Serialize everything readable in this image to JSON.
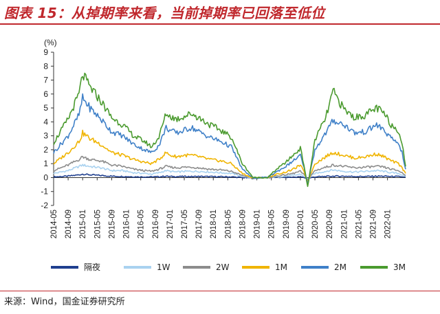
{
  "title": "图表 15：从掉期率来看，当前掉期率已回落至低位",
  "source": "来源：Wind，国金证券研究所",
  "chart_data": {
    "type": "line",
    "unit": "(%)",
    "ylim": [
      -2,
      9
    ],
    "yticks": [
      -2,
      -1,
      0,
      1,
      2,
      3,
      4,
      5,
      6,
      7,
      8,
      9
    ],
    "x_start": "2014-05",
    "x_end": "2022-06",
    "xticks": [
      "2014-05",
      "2014-09",
      "2015-01",
      "2015-05",
      "2015-09",
      "2016-01",
      "2016-05",
      "2016-09",
      "2017-01",
      "2017-05",
      "2017-09",
      "2018-01",
      "2018-05",
      "2018-09",
      "2019-01",
      "2019-05",
      "2019-09",
      "2020-01",
      "2020-05",
      "2020-09",
      "2021-01",
      "2021-05",
      "2021-09",
      "2022-01"
    ],
    "grid": false,
    "legend_position": "bottom",
    "x": [
      "2014-05",
      "2014-09",
      "2014-12",
      "2015-01",
      "2015-03",
      "2015-06",
      "2015-09",
      "2015-12",
      "2016-03",
      "2016-06",
      "2016-08",
      "2016-10",
      "2016-12",
      "2017-01",
      "2017-03",
      "2017-05",
      "2017-07",
      "2017-09",
      "2017-12",
      "2018-03",
      "2018-06",
      "2018-09",
      "2018-12",
      "2019-02",
      "2019-04",
      "2019-06",
      "2019-09",
      "2019-11",
      "2020-01",
      "2020-02",
      "2020-03",
      "2020-05",
      "2020-08",
      "2020-10",
      "2021-01",
      "2021-04",
      "2021-07",
      "2021-10",
      "2021-12",
      "2022-02",
      "2022-04",
      "2022-05",
      "2022-06"
    ],
    "series": [
      {
        "name": "隔夜",
        "color": "#1f3f8f",
        "values": [
          0.05,
          0.1,
          0.2,
          0.25,
          0.2,
          0.15,
          0.1,
          0.08,
          0.06,
          0.05,
          0.05,
          0.06,
          0.1,
          0.08,
          0.07,
          0.08,
          0.07,
          0.08,
          0.07,
          0.06,
          0.05,
          0.0,
          -0.05,
          0.0,
          0.0,
          0.02,
          0.02,
          0.03,
          0.05,
          0.0,
          -0.05,
          0.05,
          0.08,
          0.1,
          0.1,
          0.08,
          0.08,
          0.1,
          0.1,
          0.08,
          0.07,
          0.05,
          0.03
        ]
      },
      {
        "name": "1W",
        "color": "#a9d2f0",
        "values": [
          0.3,
          0.5,
          0.8,
          0.9,
          0.8,
          0.7,
          0.5,
          0.5,
          0.35,
          0.3,
          0.25,
          0.35,
          0.5,
          0.45,
          0.4,
          0.45,
          0.45,
          0.45,
          0.4,
          0.35,
          0.3,
          0.1,
          -0.05,
          0.0,
          0.0,
          0.05,
          0.1,
          0.15,
          0.25,
          0.1,
          -0.1,
          0.3,
          0.45,
          0.55,
          0.45,
          0.4,
          0.45,
          0.5,
          0.45,
          0.35,
          0.3,
          0.2,
          0.1
        ]
      },
      {
        "name": "2W",
        "color": "#8c8c8c",
        "values": [
          0.5,
          0.9,
          1.3,
          1.5,
          1.3,
          1.2,
          0.9,
          0.8,
          0.6,
          0.5,
          0.45,
          0.6,
          0.8,
          0.75,
          0.7,
          0.75,
          0.75,
          0.7,
          0.6,
          0.55,
          0.45,
          0.15,
          -0.05,
          0.0,
          0.0,
          0.1,
          0.2,
          0.3,
          0.45,
          0.2,
          -0.15,
          0.5,
          0.75,
          0.9,
          0.8,
          0.7,
          0.75,
          0.8,
          0.75,
          0.6,
          0.5,
          0.35,
          0.15
        ]
      },
      {
        "name": "1M",
        "color": "#f0b400",
        "values": [
          1.0,
          1.8,
          2.6,
          3.2,
          2.8,
          2.4,
          1.8,
          1.6,
          1.3,
          1.1,
          1.0,
          1.3,
          1.8,
          1.6,
          1.5,
          1.6,
          1.6,
          1.5,
          1.3,
          1.2,
          1.0,
          0.3,
          -0.05,
          0.0,
          0.0,
          0.2,
          0.4,
          0.6,
          0.9,
          0.4,
          -0.3,
          1.0,
          1.5,
          1.8,
          1.6,
          1.4,
          1.5,
          1.7,
          1.5,
          1.2,
          1.0,
          0.7,
          0.3
        ]
      },
      {
        "name": "2M",
        "color": "#3f80c8",
        "values": [
          1.8,
          3.0,
          4.5,
          5.7,
          5.0,
          4.2,
          3.3,
          3.0,
          2.4,
          2.0,
          1.8,
          2.3,
          3.6,
          3.4,
          3.2,
          3.4,
          3.6,
          3.3,
          2.9,
          2.6,
          2.2,
          0.6,
          -0.05,
          0.0,
          0.0,
          0.35,
          0.8,
          1.2,
          1.6,
          0.7,
          -0.5,
          2.0,
          3.2,
          4.1,
          3.8,
          3.2,
          3.3,
          3.8,
          3.4,
          2.8,
          2.5,
          1.8,
          0.6
        ]
      },
      {
        "name": "3M",
        "color": "#4a9a2e",
        "values": [
          2.5,
          4.2,
          6.0,
          7.4,
          6.5,
          5.5,
          4.3,
          3.8,
          3.0,
          2.6,
          2.2,
          2.9,
          4.6,
          4.4,
          4.2,
          4.4,
          4.6,
          4.3,
          3.8,
          3.4,
          2.9,
          1.0,
          0.0,
          0.0,
          0.0,
          0.5,
          1.1,
          1.6,
          2.1,
          0.9,
          -0.7,
          2.7,
          4.3,
          6.2,
          4.9,
          4.3,
          4.5,
          5.0,
          4.6,
          3.8,
          3.4,
          2.5,
          0.8
        ]
      }
    ]
  }
}
